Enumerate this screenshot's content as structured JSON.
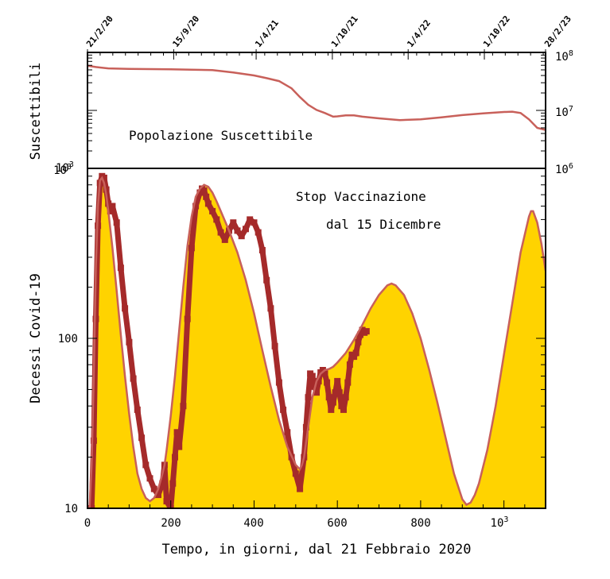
{
  "chart_data": [
    {
      "type": "line",
      "panel": "top",
      "ylabel": "Suscettibili",
      "yscale": "log",
      "annotation": "Popolazione Suscettibile",
      "left_tick_labels": [
        {
          "exp": "3"
        }
      ],
      "right_tick_labels": [
        {
          "exp": "8"
        },
        {
          "exp": "7"
        },
        {
          "exp": "6"
        }
      ],
      "ylim_right": [
        1000000,
        100000000
      ],
      "xlim": [
        0,
        1100
      ],
      "date_axis": {
        "labels": [
          "21/2/20",
          "15/9/20",
          "1/4/21",
          "1/10/21",
          "1/4/22",
          "1/10/22",
          "28/2/23"
        ],
        "days": [
          0,
          207,
          405,
          588,
          770,
          953,
          1100
        ]
      },
      "series": [
        {
          "color": "#c8605a",
          "x": [
            0,
            20,
            50,
            100,
            150,
            200,
            250,
            300,
            350,
            400,
            430,
            460,
            490,
            510,
            530,
            550,
            570,
            590,
            600,
            620,
            640,
            660,
            700,
            750,
            800,
            850,
            900,
            950,
            1000,
            1020,
            1040,
            1060,
            1080,
            1100
          ],
          "y": [
            59000000,
            56000000,
            53000000,
            52000000,
            51500000,
            51000000,
            50500000,
            49500000,
            45000000,
            40000000,
            36000000,
            32000000,
            24000000,
            17000000,
            12500000,
            10200000,
            9000000,
            7800000,
            7900000,
            8200000,
            8200000,
            7800000,
            7300000,
            6800000,
            7000000,
            7600000,
            8300000,
            8900000,
            9400000,
            9500000,
            9000000,
            7000000,
            5000000,
            4600000
          ]
        }
      ]
    },
    {
      "type": "area",
      "panel": "bottom",
      "xlabel": "Tempo, in giorni, dal 21 Febbraio 2020",
      "ylabel": "Decessi Covid-19",
      "yscale": "log",
      "ylim": [
        10,
        1000
      ],
      "xlim": [
        0,
        1100
      ],
      "x_tick_labels": [
        {
          "x": 0,
          "label": "0"
        },
        {
          "x": 200,
          "label": "200"
        },
        {
          "x": 400,
          "label": "400"
        },
        {
          "x": 600,
          "label": "600"
        },
        {
          "x": 800,
          "label": "800"
        },
        {
          "x": 1000,
          "label": "10",
          "exp": "3"
        }
      ],
      "y_tick_labels": [
        {
          "y": 10,
          "label": "10"
        },
        {
          "y": 100,
          "label": "100"
        },
        {
          "y": 1000,
          "label": "10",
          "exp": "3"
        }
      ],
      "annotation_lines": [
        "Stop Vaccinazione",
        "dal 15 Dicembre"
      ],
      "series": [
        {
          "kind": "model-area",
          "fill": "#ffd300",
          "stroke": "#c8605a",
          "x": [
            0,
            5,
            10,
            15,
            20,
            25,
            30,
            35,
            40,
            45,
            50,
            60,
            70,
            80,
            90,
            100,
            110,
            120,
            130,
            140,
            150,
            160,
            170,
            180,
            185,
            190,
            200,
            210,
            220,
            230,
            240,
            250,
            260,
            270,
            280,
            290,
            300,
            310,
            320,
            340,
            360,
            380,
            400,
            420,
            440,
            460,
            480,
            500,
            510,
            515,
            520,
            530,
            540,
            550,
            560,
            570,
            580,
            590,
            600,
            620,
            640,
            660,
            680,
            700,
            720,
            730,
            740,
            760,
            780,
            800,
            820,
            840,
            860,
            880,
            900,
            910,
            920,
            930,
            940,
            960,
            980,
            1000,
            1020,
            1040,
            1060,
            1065,
            1070,
            1080,
            1090,
            1100
          ],
          "y": [
            10,
            10,
            18,
            60,
            260,
            600,
            850,
            880,
            820,
            700,
            560,
            340,
            190,
            105,
            60,
            36,
            23,
            16,
            13,
            11.5,
            11,
            11.5,
            13,
            16,
            18,
            22,
            35,
            60,
            110,
            200,
            350,
            520,
            680,
            760,
            800,
            780,
            720,
            640,
            560,
            430,
            320,
            220,
            140,
            85,
            52,
            33,
            23,
            18,
            17,
            18,
            20,
            30,
            45,
            56,
            62,
            65,
            66,
            68,
            72,
            82,
            98,
            120,
            150,
            180,
            205,
            210,
            205,
            180,
            140,
            100,
            66,
            42,
            26,
            16,
            11.3,
            10.5,
            10.8,
            12,
            14,
            22,
            40,
            80,
            160,
            320,
            520,
            560,
            560,
            480,
            360,
            250
          ]
        },
        {
          "kind": "observed",
          "color": "#a52a2a",
          "x": [
            0,
            5,
            10,
            15,
            20,
            25,
            30,
            35,
            40,
            45,
            50,
            55,
            60,
            70,
            80,
            90,
            100,
            110,
            120,
            130,
            140,
            150,
            160,
            170,
            180,
            185,
            190,
            200,
            205,
            210,
            215,
            220,
            230,
            240,
            250,
            260,
            270,
            275,
            280,
            285,
            290,
            300,
            310,
            320,
            330,
            340,
            350,
            360,
            370,
            380,
            390,
            400,
            410,
            420,
            430,
            440,
            450,
            460,
            470,
            480,
            490,
            500,
            510,
            520,
            525,
            530,
            535,
            540,
            545,
            550,
            555,
            560,
            565,
            570,
            575,
            580,
            585,
            590,
            595,
            600,
            605,
            610,
            615,
            620,
            625,
            630,
            635,
            640,
            645,
            650,
            655,
            660,
            665,
            670
          ],
          "y": [
            10,
            10,
            10,
            25,
            130,
            460,
            820,
            900,
            880,
            750,
            620,
            560,
            600,
            480,
            260,
            150,
            95,
            58,
            38,
            26,
            18,
            15,
            13,
            12,
            14,
            18,
            11,
            10,
            14,
            20,
            28,
            23,
            40,
            130,
            340,
            600,
            720,
            760,
            740,
            680,
            620,
            560,
            500,
            420,
            380,
            430,
            480,
            430,
            400,
            440,
            500,
            480,
            420,
            330,
            220,
            150,
            90,
            55,
            38,
            28,
            20,
            16,
            13,
            20,
            30,
            45,
            62,
            60,
            52,
            48,
            56,
            63,
            65,
            62,
            55,
            45,
            38,
            42,
            48,
            56,
            48,
            40,
            38,
            45,
            55,
            70,
            80,
            78,
            82,
            95,
            105,
            112,
            108,
            110
          ]
        }
      ]
    }
  ]
}
